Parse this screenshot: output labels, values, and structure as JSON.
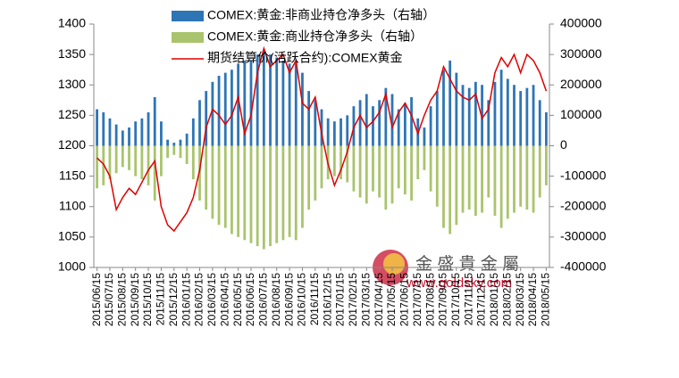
{
  "chart_data": {
    "type": "bar-line",
    "categories": [
      "2015/06/15",
      null,
      "2015/07/15",
      null,
      "2015/08/15",
      null,
      "2015/09/15",
      null,
      "2015/10/15",
      null,
      "2015/11/15",
      null,
      "2015/12/15",
      null,
      "2016/01/15",
      null,
      "2016/02/15",
      null,
      "2016/03/15",
      null,
      "2016/04/15",
      null,
      "2016/05/15",
      null,
      "2016/06/15",
      null,
      "2016/07/15",
      null,
      "2016/08/15",
      null,
      "2016/09/15",
      null,
      "2016/10/15",
      null,
      "2016/11/15",
      null,
      "2016/12/15",
      null,
      "2017/01/15",
      null,
      "2017/02/15",
      null,
      "2017/03/15",
      null,
      "2017/04/15",
      null,
      "2017/05/15",
      null,
      "2017/06/15",
      null,
      "2017/07/15",
      null,
      "2017/08/15",
      null,
      "2017/09/15",
      null,
      "2017/10/15",
      null,
      "2017/11/15",
      null,
      "2017/12/15",
      null,
      "2018/01/15",
      null,
      "2018/02/15",
      null,
      "2018/03/15",
      null,
      "2018/04/15",
      null,
      "2018/05/15"
    ],
    "series": [
      {
        "name": "COMEX:黄金:非商业持仓净多头（右轴）",
        "color": "#2e75b6",
        "axis": "y2",
        "kind": "bar",
        "values": [
          120000,
          110000,
          90000,
          70000,
          50000,
          60000,
          80000,
          90000,
          110000,
          160000,
          80000,
          20000,
          10000,
          20000,
          40000,
          90000,
          150000,
          180000,
          210000,
          230000,
          240000,
          250000,
          270000,
          280000,
          280000,
          300000,
          310000,
          300000,
          290000,
          280000,
          270000,
          280000,
          240000,
          180000,
          150000,
          120000,
          90000,
          80000,
          90000,
          100000,
          130000,
          150000,
          170000,
          130000,
          150000,
          190000,
          170000,
          120000,
          140000,
          160000,
          90000,
          60000,
          130000,
          180000,
          250000,
          280000,
          240000,
          200000,
          190000,
          210000,
          200000,
          150000,
          210000,
          250000,
          220000,
          200000,
          180000,
          190000,
          200000,
          150000,
          110000
        ]
      },
      {
        "name": "COMEX:黄金:商业持仓净多头（右轴）",
        "color": "#a9c46c",
        "axis": "y2",
        "kind": "bar",
        "values": [
          -140000,
          -130000,
          -110000,
          -90000,
          -70000,
          -80000,
          -100000,
          -110000,
          -130000,
          -180000,
          -100000,
          -40000,
          -30000,
          -40000,
          -60000,
          -110000,
          -180000,
          -210000,
          -240000,
          -260000,
          -270000,
          -290000,
          -300000,
          -310000,
          -320000,
          -330000,
          -340000,
          -330000,
          -320000,
          -310000,
          -300000,
          -310000,
          -270000,
          -210000,
          -180000,
          -140000,
          -110000,
          -100000,
          -110000,
          -120000,
          -150000,
          -170000,
          -190000,
          -150000,
          -170000,
          -210000,
          -190000,
          -140000,
          -160000,
          -180000,
          -110000,
          -80000,
          -150000,
          -200000,
          -270000,
          -290000,
          -260000,
          -220000,
          -210000,
          -230000,
          -220000,
          -170000,
          -230000,
          -270000,
          -240000,
          -220000,
          -200000,
          -210000,
          -220000,
          -170000,
          -130000
        ]
      },
      {
        "name": "期货结算价(活跃合约):COMEX黄金",
        "color": "#e00000",
        "kind": "line",
        "values": [
          1180,
          1170,
          1150,
          1095,
          1115,
          1130,
          1120,
          1140,
          1160,
          1175,
          1100,
          1070,
          1060,
          1075,
          1090,
          1115,
          1160,
          1230,
          1260,
          1250,
          1235,
          1250,
          1280,
          1220,
          1250,
          1320,
          1360,
          1330,
          1340,
          1350,
          1320,
          1340,
          1270,
          1260,
          1280,
          1220,
          1170,
          1135,
          1160,
          1190,
          1230,
          1250,
          1230,
          1240,
          1255,
          1285,
          1230,
          1255,
          1270,
          1250,
          1220,
          1250,
          1275,
          1290,
          1330,
          1310,
          1290,
          1280,
          1275,
          1285,
          1245,
          1260,
          1320,
          1345,
          1330,
          1350,
          1320,
          1350,
          1340,
          1320,
          1290
        ]
      }
    ],
    "ylim": [
      1000,
      1400
    ],
    "yticks": [
      1000,
      1050,
      1100,
      1150,
      1200,
      1250,
      1300,
      1350,
      1400
    ],
    "y2lim": [
      -400000,
      400000
    ],
    "y2ticks": [
      -400000,
      -300000,
      -200000,
      -100000,
      0,
      100000,
      200000,
      300000,
      400000
    ],
    "legend": "top",
    "watermark": {
      "name": "金 盛 貴 金 屬",
      "url": "www.goldsky.com"
    }
  }
}
